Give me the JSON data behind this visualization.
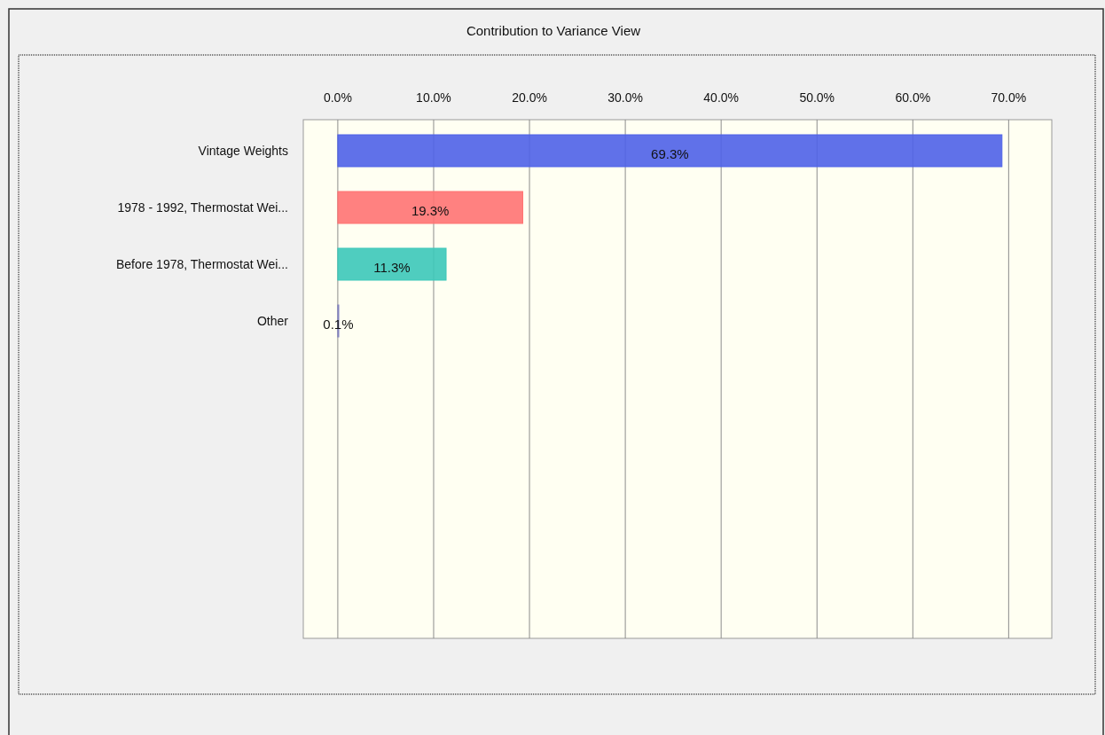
{
  "chart_data": {
    "type": "bar",
    "title": "Contribution to Variance View",
    "orientation": "horizontal",
    "categories": [
      "Vintage Weights",
      "1978 - 1992, Thermostat Wei...",
      "Before 1978, Thermostat Wei...",
      "Other"
    ],
    "values": [
      69.3,
      19.3,
      11.3,
      0.1
    ],
    "value_labels": [
      "69.3%",
      "19.3%",
      "11.3%",
      "0.1%"
    ],
    "colors": [
      "#4f62e8",
      "#ff7373",
      "#3cc8b9",
      "#8080c0"
    ],
    "xlim": [
      -3.6,
      74.5
    ],
    "xticks": [
      {
        "value": 0,
        "label": "0.0%"
      },
      {
        "value": 10,
        "label": "10.0%"
      },
      {
        "value": 20,
        "label": "20.0%"
      },
      {
        "value": 30,
        "label": "30.0%"
      },
      {
        "value": 40,
        "label": "40.0%"
      },
      {
        "value": 50,
        "label": "50.0%"
      },
      {
        "value": 60,
        "label": "60.0%"
      },
      {
        "value": 70,
        "label": "70.0%"
      }
    ],
    "grid": "x"
  }
}
